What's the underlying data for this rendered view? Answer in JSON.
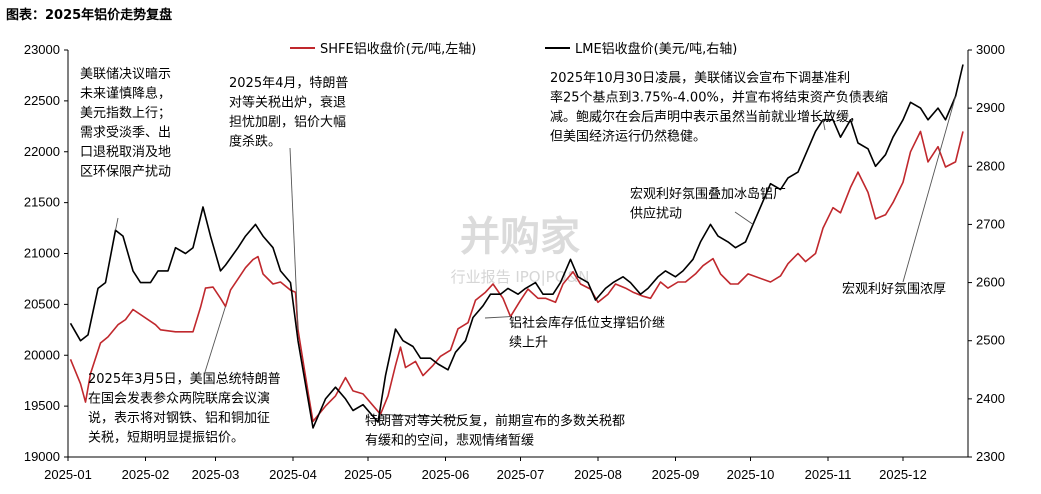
{
  "title": "图表：2025年铝价走势复盘",
  "watermark": {
    "main": "并购家",
    "sub": "行业报告 IPO|PO&N"
  },
  "chart_data": {
    "type": "line",
    "x_ticks": [
      "2025-01",
      "2025-02",
      "2025-03",
      "2025-04",
      "2025-05",
      "2025-06",
      "2025-07",
      "2025-08",
      "2025-09",
      "2025-10",
      "2025-11",
      "2025-12"
    ],
    "ylim_left": [
      19000,
      23000
    ],
    "yticks_left": [
      19000,
      19500,
      20000,
      20500,
      21000,
      21500,
      22000,
      22500,
      23000
    ],
    "ylim_right": [
      2300,
      3000
    ],
    "yticks_right": [
      2300,
      2400,
      2500,
      2600,
      2700,
      2800,
      2900,
      3000
    ],
    "grid": false,
    "legend_position": "top-center",
    "series": [
      {
        "name": "SHFE铝收盘价(元/吨,左轴)",
        "axis": "left",
        "color": "#c0282d",
        "points": [
          [
            "2025-01-02",
            19960
          ],
          [
            "2025-01-06",
            19720
          ],
          [
            "2025-01-08",
            19540
          ],
          [
            "2025-01-10",
            19820
          ],
          [
            "2025-01-14",
            20120
          ],
          [
            "2025-01-17",
            20180
          ],
          [
            "2025-01-21",
            20300
          ],
          [
            "2025-01-24",
            20350
          ],
          [
            "2025-01-27",
            20450
          ],
          [
            "2025-02-05",
            20300
          ],
          [
            "2025-02-07",
            20250
          ],
          [
            "2025-02-13",
            20230
          ],
          [
            "2025-02-20",
            20230
          ],
          [
            "2025-02-23",
            20470
          ],
          [
            "2025-02-25",
            20660
          ],
          [
            "2025-02-28",
            20670
          ],
          [
            "2025-03-03",
            20560
          ],
          [
            "2025-03-05",
            20480
          ],
          [
            "2025-03-07",
            20640
          ],
          [
            "2025-03-10",
            20750
          ],
          [
            "2025-03-13",
            20860
          ],
          [
            "2025-03-16",
            20940
          ],
          [
            "2025-03-18",
            20970
          ],
          [
            "2025-03-20",
            20800
          ],
          [
            "2025-03-24",
            20700
          ],
          [
            "2025-03-27",
            20720
          ],
          [
            "2025-03-31",
            20640
          ],
          [
            "2025-04-02",
            20620
          ],
          [
            "2025-04-03",
            20250
          ],
          [
            "2025-04-07",
            19640
          ],
          [
            "2025-04-09",
            19350
          ],
          [
            "2025-04-14",
            19500
          ],
          [
            "2025-04-18",
            19600
          ],
          [
            "2025-04-22",
            19780
          ],
          [
            "2025-04-25",
            19650
          ],
          [
            "2025-04-29",
            19620
          ],
          [
            "2025-05-06",
            19420
          ],
          [
            "2025-05-09",
            19600
          ],
          [
            "2025-05-12",
            19900
          ],
          [
            "2025-05-14",
            20080
          ],
          [
            "2025-05-16",
            19880
          ],
          [
            "2025-05-20",
            19940
          ],
          [
            "2025-05-23",
            19800
          ],
          [
            "2025-05-27",
            19900
          ],
          [
            "2025-05-30",
            19990
          ],
          [
            "2025-06-03",
            20050
          ],
          [
            "2025-06-06",
            20260
          ],
          [
            "2025-06-10",
            20320
          ],
          [
            "2025-06-13",
            20540
          ],
          [
            "2025-06-17",
            20620
          ],
          [
            "2025-06-20",
            20700
          ],
          [
            "2025-06-24",
            20560
          ],
          [
            "2025-06-27",
            20380
          ],
          [
            "2025-07-01",
            20540
          ],
          [
            "2025-07-04",
            20650
          ],
          [
            "2025-07-08",
            20560
          ],
          [
            "2025-07-11",
            20560
          ],
          [
            "2025-07-15",
            20520
          ],
          [
            "2025-07-18",
            20700
          ],
          [
            "2025-07-22",
            20820
          ],
          [
            "2025-07-25",
            20700
          ],
          [
            "2025-07-29",
            20650
          ],
          [
            "2025-08-01",
            20520
          ],
          [
            "2025-08-05",
            20600
          ],
          [
            "2025-08-08",
            20700
          ],
          [
            "2025-08-12",
            20660
          ],
          [
            "2025-08-15",
            20620
          ],
          [
            "2025-08-19",
            20580
          ],
          [
            "2025-08-22",
            20560
          ],
          [
            "2025-08-26",
            20720
          ],
          [
            "2025-08-29",
            20660
          ],
          [
            "2025-09-02",
            20720
          ],
          [
            "2025-09-05",
            20720
          ],
          [
            "2025-09-09",
            20800
          ],
          [
            "2025-09-12",
            20880
          ],
          [
            "2025-09-16",
            20950
          ],
          [
            "2025-09-19",
            20800
          ],
          [
            "2025-09-23",
            20700
          ],
          [
            "2025-09-26",
            20700
          ],
          [
            "2025-09-30",
            20800
          ],
          [
            "2025-10-09",
            20720
          ],
          [
            "2025-10-13",
            20780
          ],
          [
            "2025-10-16",
            20900
          ],
          [
            "2025-10-20",
            21000
          ],
          [
            "2025-10-23",
            20920
          ],
          [
            "2025-10-27",
            21000
          ],
          [
            "2025-10-30",
            21250
          ],
          [
            "2025-11-03",
            21450
          ],
          [
            "2025-11-06",
            21400
          ],
          [
            "2025-11-10",
            21650
          ],
          [
            "2025-11-13",
            21800
          ],
          [
            "2025-11-17",
            21600
          ],
          [
            "2025-11-20",
            21340
          ],
          [
            "2025-11-24",
            21380
          ],
          [
            "2025-11-27",
            21500
          ],
          [
            "2025-12-01",
            21700
          ],
          [
            "2025-12-04",
            22000
          ],
          [
            "2025-12-08",
            22200
          ],
          [
            "2025-12-11",
            21900
          ],
          [
            "2025-12-15",
            22050
          ],
          [
            "2025-12-18",
            21850
          ],
          [
            "2025-12-22",
            21900
          ],
          [
            "2025-12-25",
            22200
          ]
        ]
      },
      {
        "name": "LME铝收盘价(美元/吨,右轴)",
        "axis": "right",
        "color": "#000000",
        "points": [
          [
            "2025-01-02",
            2530
          ],
          [
            "2025-01-06",
            2500
          ],
          [
            "2025-01-09",
            2510
          ],
          [
            "2025-01-13",
            2590
          ],
          [
            "2025-01-16",
            2600
          ],
          [
            "2025-01-20",
            2690
          ],
          [
            "2025-01-23",
            2680
          ],
          [
            "2025-01-27",
            2620
          ],
          [
            "2025-01-30",
            2600
          ],
          [
            "2025-02-03",
            2600
          ],
          [
            "2025-02-06",
            2620
          ],
          [
            "2025-02-10",
            2620
          ],
          [
            "2025-02-13",
            2660
          ],
          [
            "2025-02-17",
            2650
          ],
          [
            "2025-02-20",
            2660
          ],
          [
            "2025-02-24",
            2730
          ],
          [
            "2025-02-27",
            2680
          ],
          [
            "2025-03-03",
            2620
          ],
          [
            "2025-03-05",
            2630
          ],
          [
            "2025-03-10",
            2660
          ],
          [
            "2025-03-13",
            2680
          ],
          [
            "2025-03-17",
            2700
          ],
          [
            "2025-03-20",
            2680
          ],
          [
            "2025-03-24",
            2660
          ],
          [
            "2025-03-27",
            2620
          ],
          [
            "2025-03-31",
            2600
          ],
          [
            "2025-04-03",
            2500
          ],
          [
            "2025-04-07",
            2400
          ],
          [
            "2025-04-09",
            2350
          ],
          [
            "2025-04-14",
            2400
          ],
          [
            "2025-04-18",
            2420
          ],
          [
            "2025-04-22",
            2400
          ],
          [
            "2025-04-25",
            2380
          ],
          [
            "2025-04-29",
            2390
          ],
          [
            "2025-05-05",
            2360
          ],
          [
            "2025-05-08",
            2440
          ],
          [
            "2025-05-12",
            2520
          ],
          [
            "2025-05-15",
            2500
          ],
          [
            "2025-05-19",
            2490
          ],
          [
            "2025-05-22",
            2470
          ],
          [
            "2025-05-26",
            2470
          ],
          [
            "2025-05-29",
            2460
          ],
          [
            "2025-06-02",
            2450
          ],
          [
            "2025-06-05",
            2480
          ],
          [
            "2025-06-09",
            2500
          ],
          [
            "2025-06-12",
            2540
          ],
          [
            "2025-06-16",
            2560
          ],
          [
            "2025-06-19",
            2580
          ],
          [
            "2025-06-23",
            2580
          ],
          [
            "2025-06-26",
            2590
          ],
          [
            "2025-06-30",
            2580
          ],
          [
            "2025-07-03",
            2590
          ],
          [
            "2025-07-07",
            2600
          ],
          [
            "2025-07-10",
            2580
          ],
          [
            "2025-07-14",
            2580
          ],
          [
            "2025-07-17",
            2600
          ],
          [
            "2025-07-21",
            2640
          ],
          [
            "2025-07-24",
            2610
          ],
          [
            "2025-07-28",
            2600
          ],
          [
            "2025-07-31",
            2570
          ],
          [
            "2025-08-04",
            2590
          ],
          [
            "2025-08-07",
            2600
          ],
          [
            "2025-08-11",
            2610
          ],
          [
            "2025-08-14",
            2600
          ],
          [
            "2025-08-18",
            2580
          ],
          [
            "2025-08-21",
            2590
          ],
          [
            "2025-08-25",
            2610
          ],
          [
            "2025-08-28",
            2620
          ],
          [
            "2025-09-01",
            2610
          ],
          [
            "2025-09-04",
            2620
          ],
          [
            "2025-09-08",
            2640
          ],
          [
            "2025-09-11",
            2670
          ],
          [
            "2025-09-15",
            2700
          ],
          [
            "2025-09-18",
            2680
          ],
          [
            "2025-09-22",
            2670
          ],
          [
            "2025-09-25",
            2660
          ],
          [
            "2025-09-29",
            2670
          ],
          [
            "2025-10-02",
            2700
          ],
          [
            "2025-10-06",
            2740
          ],
          [
            "2025-10-09",
            2770
          ],
          [
            "2025-10-13",
            2760
          ],
          [
            "2025-10-16",
            2780
          ],
          [
            "2025-10-20",
            2790
          ],
          [
            "2025-10-23",
            2820
          ],
          [
            "2025-10-27",
            2860
          ],
          [
            "2025-10-30",
            2880
          ],
          [
            "2025-11-03",
            2880
          ],
          [
            "2025-11-06",
            2850
          ],
          [
            "2025-11-10",
            2880
          ],
          [
            "2025-11-13",
            2840
          ],
          [
            "2025-11-17",
            2830
          ],
          [
            "2025-11-20",
            2800
          ],
          [
            "2025-11-24",
            2820
          ],
          [
            "2025-11-27",
            2850
          ],
          [
            "2025-12-01",
            2880
          ],
          [
            "2025-12-04",
            2910
          ],
          [
            "2025-12-08",
            2900
          ],
          [
            "2025-12-11",
            2880
          ],
          [
            "2025-12-15",
            2900
          ],
          [
            "2025-12-18",
            2880
          ],
          [
            "2025-12-22",
            2920
          ],
          [
            "2025-12-25",
            2975
          ]
        ]
      }
    ],
    "annotations": [
      {
        "lines": [
          "美联储决议暗示",
          "未来谨慎降息，",
          "美元指数上行；",
          "需求受淡季、出",
          "口退税取消及地",
          "区环保限产扰动"
        ],
        "target": [
          "2025-01-20",
          2690
        ],
        "axis": "right"
      },
      {
        "lines": [
          "2025年4月，特朗普",
          "对等关税出炉，衰退",
          "担忧加剧，铝价大幅",
          "度杀跌。"
        ],
        "target": [
          "2025-04-03",
          20250
        ],
        "axis": "left"
      },
      {
        "lines": [
          "2025年3月5日，美国总统特朗普",
          "在国会发表参众两院联席会议演",
          "说，表示将对钢铁、铝和铜加征",
          "关税，短期明显提振铝价。"
        ],
        "target": [
          "2025-03-05",
          20480
        ],
        "axis": "left"
      },
      {
        "lines": [
          "特朗普对等关税反复，前期宣布的多数关税都",
          "有缓和的空间，悲观情绪暂缓"
        ],
        "target": [
          "2025-05-06",
          19420
        ],
        "axis": "left"
      },
      {
        "lines": [
          "铝社会库存低位支撑铝价继",
          "续上升"
        ],
        "target": [
          "2025-06-27",
          20380
        ],
        "axis": "left"
      },
      {
        "lines": [
          "2025年10月30日凌晨，美联储议会宣布下调基准利",
          "率25个基点到3.75%-4.00%，并宣布将结束资产负债表缩",
          "减。鲍威尔在会后声明中表示虽然当前就业增长放缓，",
          "但美国经济运行仍然稳健。"
        ],
        "target": [
          "2025-10-30",
          2880
        ],
        "axis": "right"
      },
      {
        "lines": [
          "宏观利好氛围叠加冰岛铝厂",
          "供应扰动"
        ],
        "target": [
          "2025-10-02",
          2700
        ],
        "axis": "right"
      },
      {
        "lines": [
          "宏观利好氛围浓厚"
        ],
        "target": [
          "2025-12-22",
          2920
        ],
        "axis": "right"
      }
    ]
  }
}
